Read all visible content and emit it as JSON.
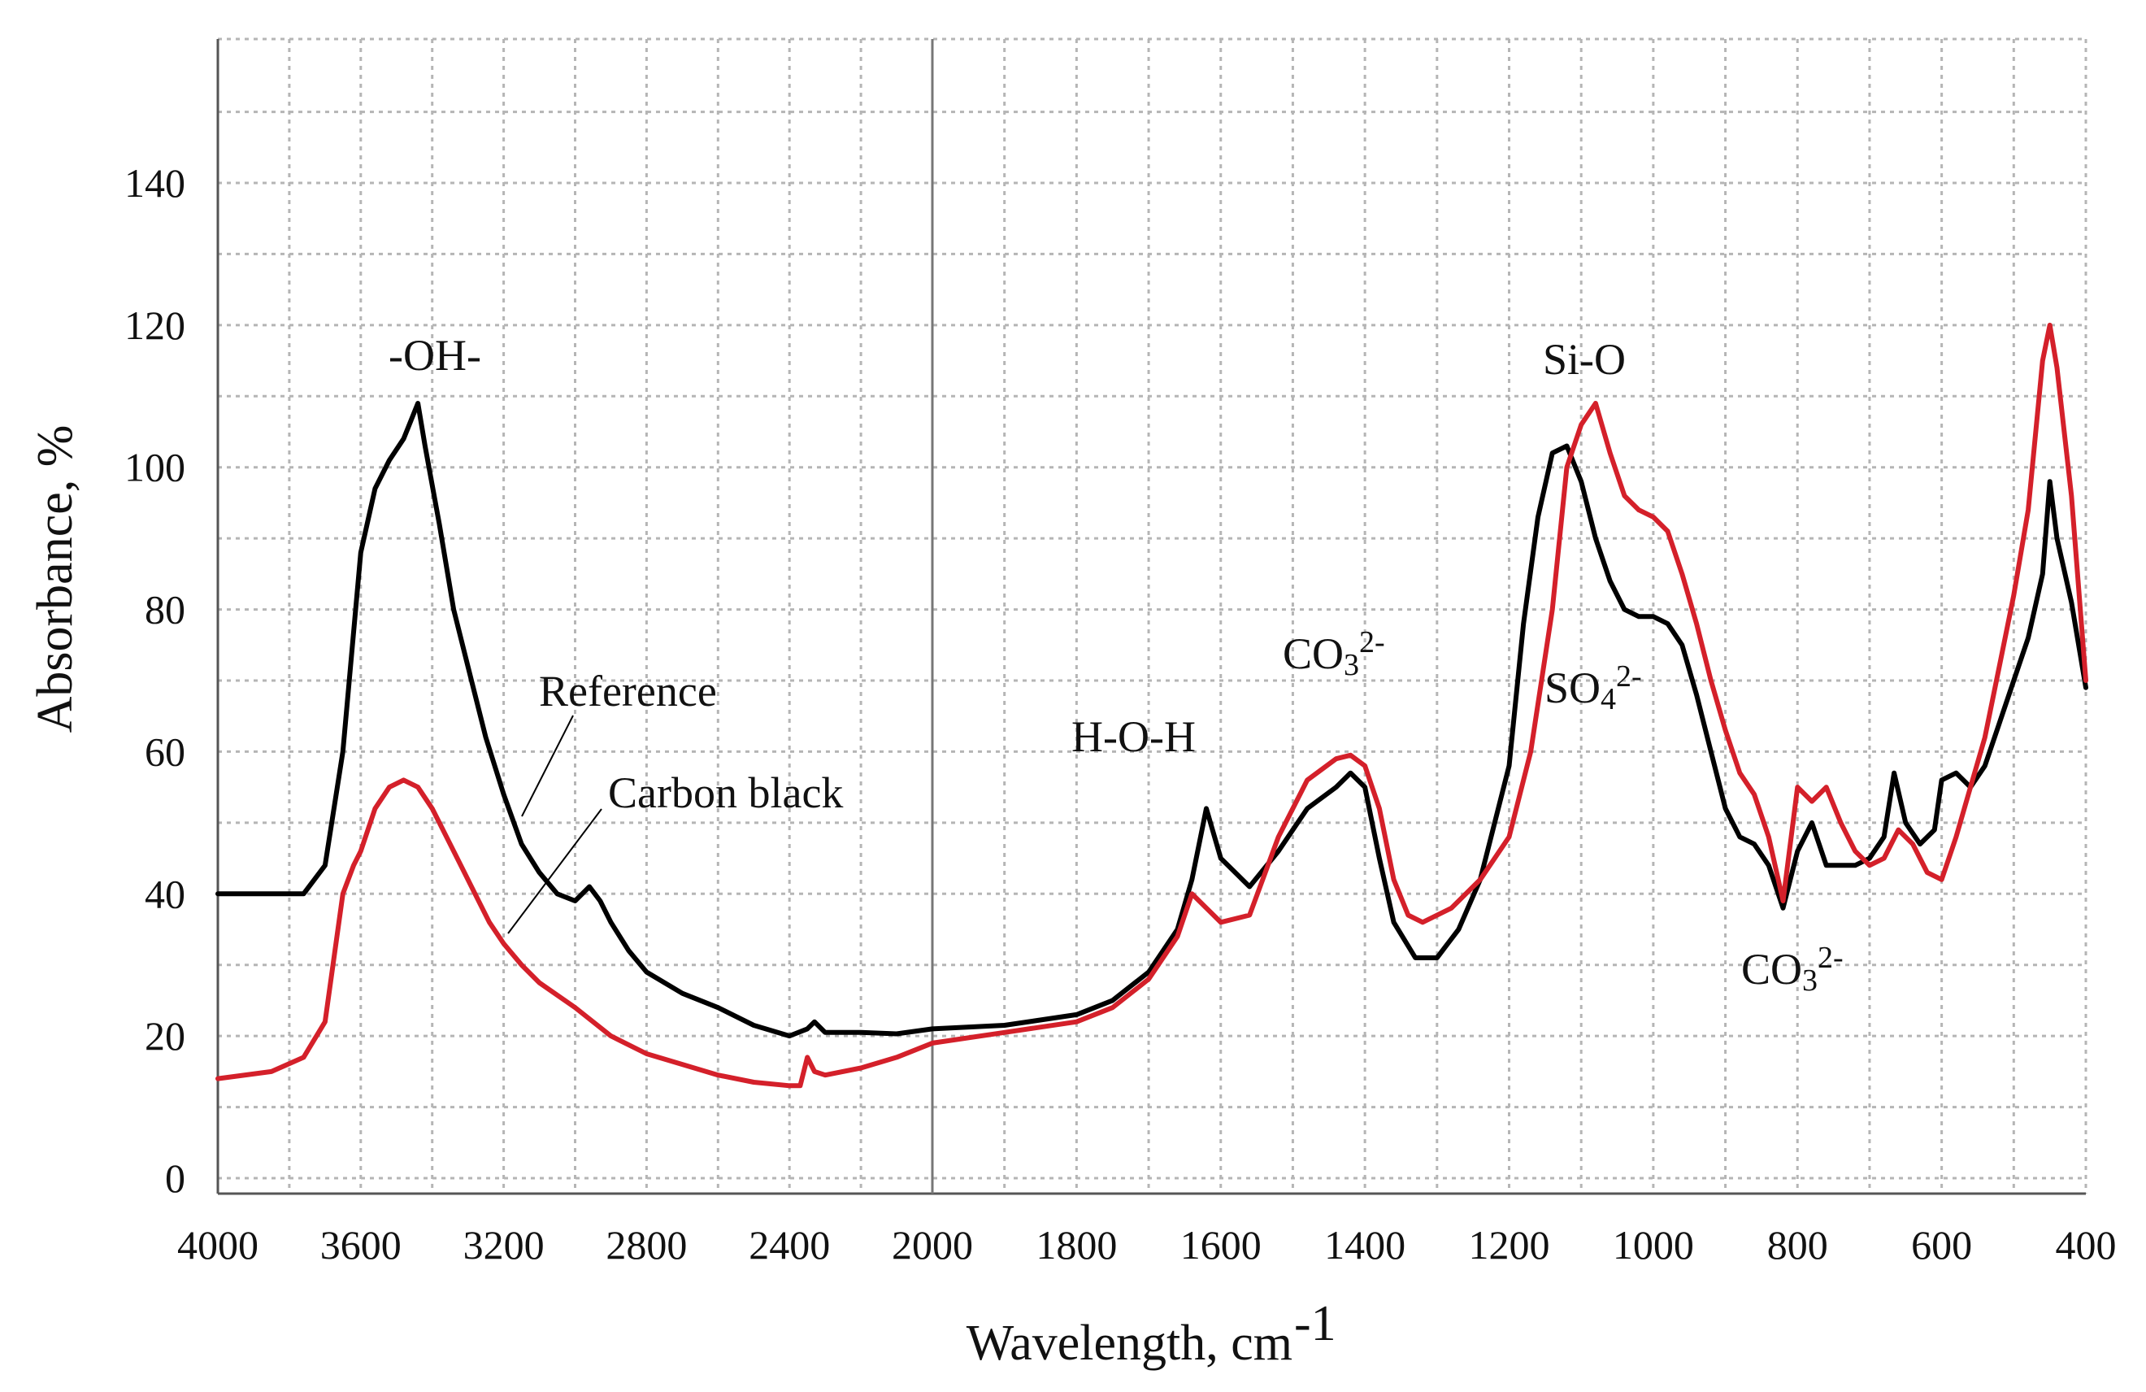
{
  "chart_data": {
    "type": "line",
    "title": "",
    "xlabel": "Wavelength, cm",
    "xlabel_sup": "-1",
    "ylabel": "Absorbance, %",
    "xlim": [
      4000,
      400
    ],
    "ylim": [
      0,
      150
    ],
    "grid": true,
    "x_ticks": {
      "upper_values": [
        4000,
        3600,
        3200,
        2800,
        2400,
        2000
      ],
      "upper_labels": [
        "4000",
        "3600",
        "3200",
        "2800",
        "2400",
        "2000"
      ],
      "lower_values": [
        1800,
        1600,
        1400,
        1200,
        1000,
        800,
        600,
        400
      ],
      "lower_labels": [
        "1800",
        "1600",
        "1400",
        "1200",
        "1000",
        "800",
        "600",
        "400"
      ]
    },
    "y_ticks": [
      0,
      20,
      40,
      60,
      80,
      100,
      120,
      140
    ],
    "series": [
      {
        "name": "Reference",
        "color": "#000000",
        "x": [
          4000,
          3850,
          3760,
          3700,
          3650,
          3600,
          3560,
          3520,
          3480,
          3440,
          3420,
          3380,
          3340,
          3300,
          3250,
          3200,
          3150,
          3100,
          3050,
          3000,
          2960,
          2930,
          2900,
          2850,
          2800,
          2700,
          2600,
          2500,
          2400,
          2350,
          2330,
          2300,
          2200,
          2100,
          2000,
          1900,
          1800,
          1750,
          1700,
          1660,
          1640,
          1620,
          1600,
          1560,
          1520,
          1480,
          1440,
          1420,
          1400,
          1380,
          1360,
          1330,
          1300,
          1270,
          1240,
          1200,
          1180,
          1160,
          1140,
          1120,
          1100,
          1080,
          1060,
          1040,
          1020,
          1000,
          980,
          960,
          940,
          920,
          900,
          880,
          860,
          840,
          820,
          800,
          780,
          760,
          740,
          720,
          700,
          680,
          666,
          650,
          630,
          610,
          600,
          580,
          560,
          540,
          520,
          500,
          480,
          460,
          450,
          440,
          420,
          400
        ],
        "y": [
          40,
          40,
          40,
          44,
          60,
          88,
          97,
          101,
          104,
          109,
          103,
          92,
          80,
          72,
          62,
          54,
          47,
          43,
          40,
          39,
          41,
          39,
          36,
          32,
          29,
          26,
          24,
          21.5,
          20,
          21,
          22,
          20.5,
          20.5,
          20.3,
          21,
          21.5,
          23,
          25,
          29,
          35,
          42,
          52,
          45,
          41,
          46,
          52,
          55,
          57,
          55,
          45,
          36,
          31,
          31,
          35,
          42,
          58,
          78,
          93,
          102,
          103,
          98,
          90,
          84,
          80,
          79,
          79,
          78,
          75,
          68,
          60,
          52,
          48,
          47,
          44,
          38,
          46,
          50,
          44,
          44,
          44,
          45,
          48,
          57,
          50,
          47,
          49,
          56,
          57,
          55,
          58,
          64,
          70,
          76,
          85,
          98,
          90,
          81,
          69
        ]
      },
      {
        "name": "Carbon black",
        "color": "#d4202a",
        "x": [
          4000,
          3850,
          3760,
          3700,
          3650,
          3620,
          3600,
          3580,
          3560,
          3520,
          3480,
          3440,
          3400,
          3360,
          3320,
          3280,
          3240,
          3200,
          3150,
          3100,
          3000,
          2900,
          2800,
          2700,
          2600,
          2500,
          2400,
          2370,
          2350,
          2330,
          2300,
          2200,
          2100,
          2000,
          1900,
          1800,
          1750,
          1700,
          1660,
          1640,
          1620,
          1600,
          1560,
          1520,
          1480,
          1440,
          1420,
          1400,
          1380,
          1360,
          1340,
          1320,
          1280,
          1240,
          1200,
          1170,
          1140,
          1120,
          1100,
          1080,
          1060,
          1040,
          1020,
          1000,
          980,
          960,
          940,
          920,
          900,
          880,
          860,
          840,
          820,
          800,
          780,
          760,
          740,
          720,
          700,
          680,
          660,
          640,
          620,
          600,
          580,
          560,
          540,
          520,
          500,
          480,
          460,
          450,
          440,
          420,
          400
        ],
        "y": [
          14,
          15,
          17,
          22,
          40,
          44,
          46,
          49,
          52,
          55,
          56,
          55,
          52,
          48,
          44,
          40,
          36,
          33,
          30,
          27.5,
          24,
          20,
          17.5,
          16,
          14.5,
          13.5,
          13,
          13,
          17,
          15,
          14.5,
          15.5,
          17,
          19,
          20.5,
          22,
          24,
          28,
          34,
          40,
          38,
          36,
          37,
          48,
          56,
          59,
          59.5,
          58,
          52,
          42,
          37,
          36,
          38,
          42,
          48,
          60,
          80,
          100,
          106,
          109,
          102,
          96,
          94,
          93,
          91,
          85,
          78,
          70,
          63,
          57,
          54,
          48,
          39,
          55,
          53,
          55,
          50,
          46,
          44,
          45,
          49,
          47,
          43,
          42,
          48,
          55,
          62,
          72,
          82,
          94,
          115,
          120,
          114,
          96,
          70
        ]
      }
    ],
    "legend": [
      {
        "label": "Reference",
        "color": "#000000"
      },
      {
        "label": "Carbon black",
        "color": "#d4202a"
      }
    ],
    "annotations": [
      {
        "label": "-OH-"
      },
      {
        "label": "H-O-H"
      },
      {
        "label": "CO",
        "sub": "3",
        "sup": "2-"
      },
      {
        "label": "Si-O"
      },
      {
        "label": "SO",
        "sub": "4",
        "sup": "2-"
      },
      {
        "label": "CO",
        "sub": "3",
        "sup": "2-"
      }
    ]
  }
}
